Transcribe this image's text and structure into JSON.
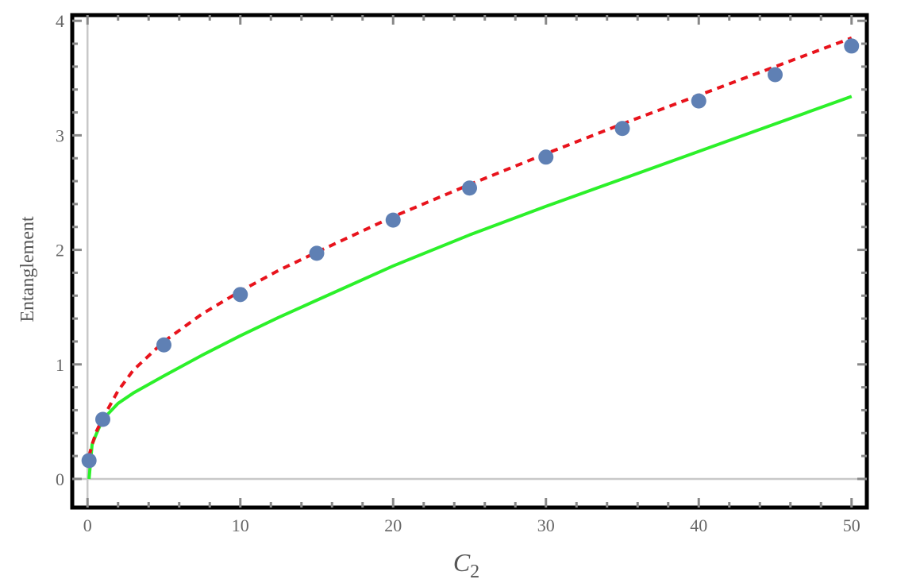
{
  "chart_data": {
    "type": "scatter",
    "xlabel": "C",
    "xlabel_sub": "2",
    "ylabel": "Entanglement",
    "xlim": [
      -1,
      51
    ],
    "ylim": [
      -0.25,
      4.05
    ],
    "x_ticks": [
      0,
      10,
      20,
      30,
      40,
      50
    ],
    "y_ticks": [
      0,
      1,
      2,
      3,
      4
    ],
    "frame": true,
    "origin_axes": true,
    "series": [
      {
        "style": "points",
        "color": "#5f80b4",
        "x": [
          0.1,
          1,
          5,
          10,
          15,
          20,
          25,
          30,
          35,
          40,
          45,
          50
        ],
        "y": [
          0.16,
          0.52,
          1.17,
          1.61,
          1.97,
          2.26,
          2.54,
          2.81,
          3.06,
          3.3,
          3.53,
          3.78
        ]
      },
      {
        "style": "dashed-line",
        "color": "#e8131c",
        "x": [
          0.1,
          0.3,
          0.6,
          1,
          2,
          3,
          5,
          7.5,
          10,
          12.5,
          15,
          20,
          25,
          30,
          35,
          40,
          45,
          50
        ],
        "y": [
          0.2,
          0.3,
          0.42,
          0.53,
          0.77,
          0.95,
          1.2,
          1.44,
          1.64,
          1.82,
          1.98,
          2.29,
          2.57,
          2.84,
          3.1,
          3.35,
          3.6,
          3.85
        ]
      },
      {
        "style": "solid-line",
        "color": "#2cf02a",
        "x": [
          0.1,
          0.3,
          0.6,
          1,
          2,
          3,
          5,
          7.5,
          10,
          12.5,
          15,
          20,
          25,
          30,
          35,
          40,
          45,
          50
        ],
        "y": [
          0.0,
          0.3,
          0.4,
          0.52,
          0.66,
          0.75,
          0.9,
          1.08,
          1.25,
          1.41,
          1.56,
          1.86,
          2.13,
          2.38,
          2.62,
          2.86,
          3.1,
          3.34
        ]
      }
    ]
  }
}
